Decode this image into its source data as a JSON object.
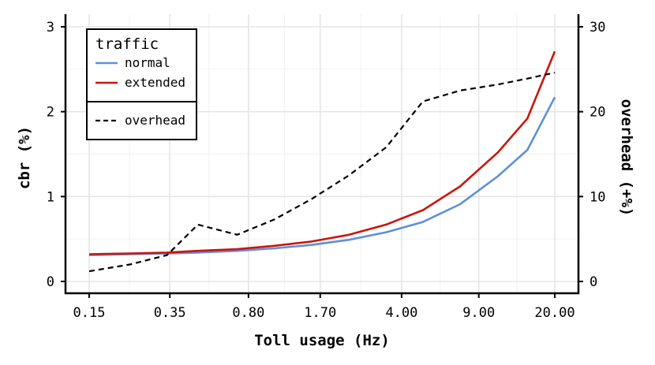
{
  "chart_data": {
    "type": "line",
    "x_label": "Toll usage (Hz)",
    "y_label": "cbr (%)",
    "y2_label": "overhead (+%)",
    "x_scale": "log",
    "x_ticks": [
      "0.15",
      "0.35",
      "0.80",
      "1.70",
      "4.00",
      "9.00",
      "20.00"
    ],
    "x_tick_values": [
      0.15,
      0.35,
      0.8,
      1.7,
      4.0,
      9.0,
      20.0
    ],
    "y_ticks": [
      "0",
      "1",
      "2",
      "3"
    ],
    "y2_ticks": [
      "0",
      "10",
      "20",
      "30"
    ],
    "ylim": [
      0,
      3
    ],
    "y2lim": [
      0,
      30
    ],
    "grid": true,
    "legend": {
      "title": "traffic",
      "placement": "top-left",
      "entries": [
        "normal",
        "extended"
      ],
      "secondary_entries": [
        "overhead"
      ]
    },
    "x": [
      0.15,
      0.23,
      0.34,
      0.47,
      0.71,
      1.05,
      1.55,
      2.3,
      3.4,
      5.0,
      7.4,
      11.0,
      15.0,
      20.0
    ],
    "series": [
      {
        "name": "normal",
        "axis": "left",
        "color": "#5f8fd9",
        "style": "solid",
        "values": [
          0.31,
          0.32,
          0.33,
          0.34,
          0.36,
          0.39,
          0.43,
          0.49,
          0.58,
          0.7,
          0.91,
          1.24,
          1.55,
          2.17
        ]
      },
      {
        "name": "extended",
        "axis": "left",
        "color": "#c9160c",
        "style": "solid",
        "values": [
          0.32,
          0.33,
          0.34,
          0.36,
          0.38,
          0.42,
          0.47,
          0.55,
          0.67,
          0.84,
          1.12,
          1.52,
          1.92,
          2.71
        ]
      },
      {
        "name": "overhead",
        "axis": "right",
        "color": "#000000",
        "style": "dashed",
        "values": [
          1.2,
          2.0,
          3.1,
          6.7,
          5.5,
          7.3,
          9.7,
          12.5,
          15.8,
          21.2,
          22.5,
          23.2,
          23.9,
          24.6
        ]
      }
    ]
  }
}
